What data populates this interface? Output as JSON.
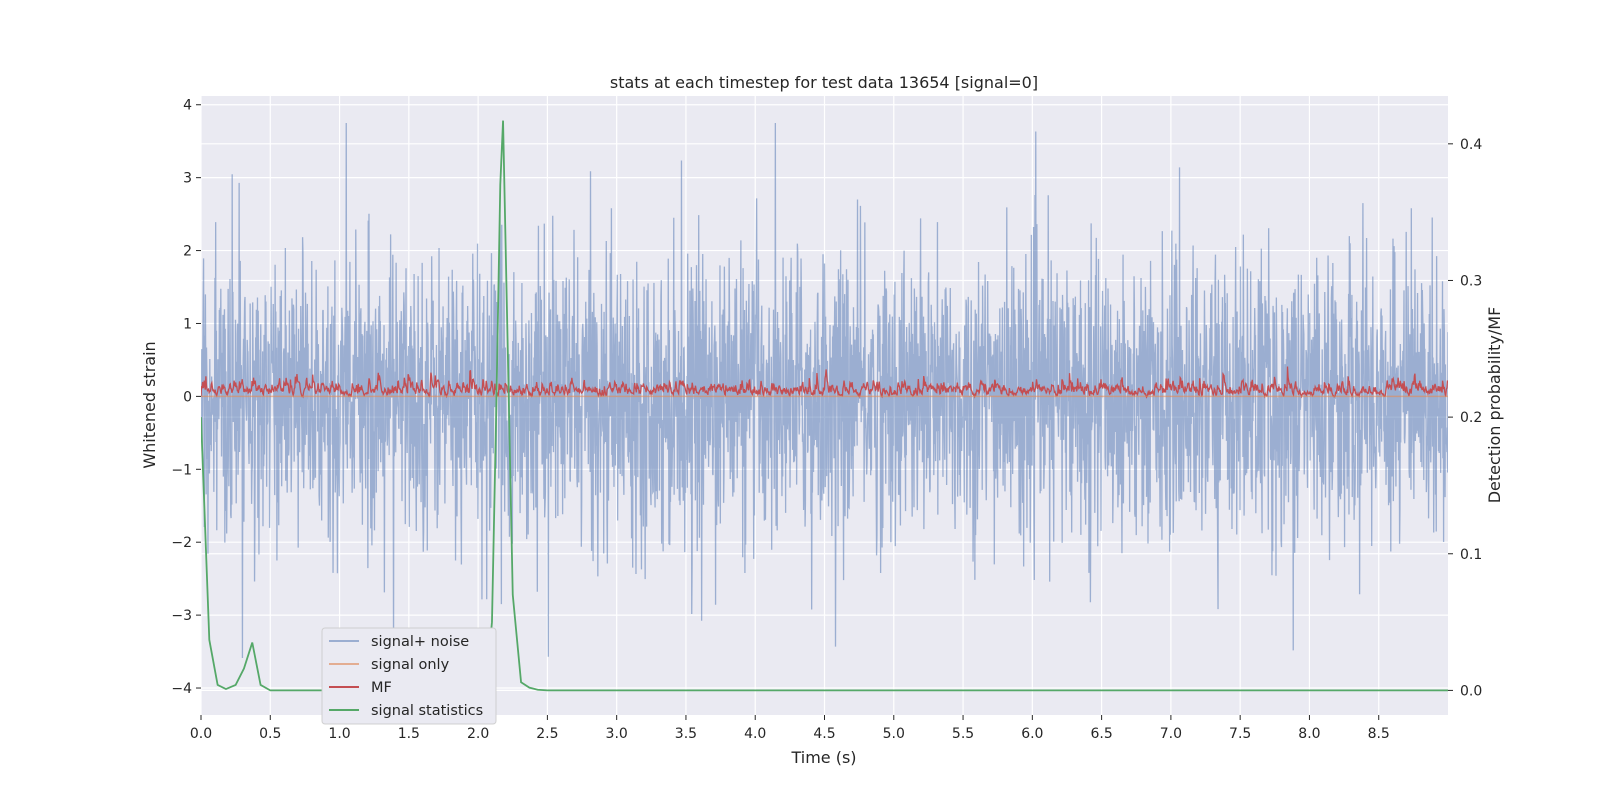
{
  "chart_data": {
    "type": "line",
    "title": "stats at each timestep for test data 13654 [signal=0]",
    "xlabel": "Time (s)",
    "ylabel": "Whitened strain",
    "y2label": "Detection probability/MF",
    "xlim": [
      0.0,
      9.0
    ],
    "ylim": [
      -4.37,
      4.12
    ],
    "y2lim": [
      -0.018,
      0.435
    ],
    "xticks": [
      "0.0",
      "0.5",
      "1.0",
      "1.5",
      "2.0",
      "2.5",
      "3.0",
      "3.5",
      "4.0",
      "4.5",
      "5.0",
      "5.5",
      "6.0",
      "6.5",
      "7.0",
      "7.5",
      "8.0",
      "8.5"
    ],
    "yticks": [
      "4",
      "3",
      "2",
      "1",
      "0",
      "−1",
      "−2",
      "−3",
      "−4"
    ],
    "y2ticks": [
      "0.4",
      "0.3",
      "0.2",
      "0.1",
      "0.0"
    ],
    "grid": true,
    "legend_position": "lower-left",
    "colors": {
      "background": "#eaeaf2",
      "grid": "#ffffff",
      "noise": "#4c72b0",
      "signal_only": "#dd8452",
      "mf": "#c44e52",
      "statistics": "#55a868"
    },
    "series": [
      {
        "name": "signal+ noise",
        "axis": "left",
        "note": "dense whitened noise, range about -4 to 3.8"
      },
      {
        "name": "signal only",
        "axis": "left",
        "values_constant": 0
      },
      {
        "name": "MF",
        "axis": "right",
        "note": "matched-filter output, approx 0.20 to 0.24"
      },
      {
        "name": "signal statistics",
        "axis": "right",
        "x": [
          0.0,
          0.06,
          0.12,
          0.18,
          0.25,
          0.31,
          0.37,
          0.43,
          0.5,
          0.62,
          0.75,
          0.87,
          1.0,
          1.25,
          1.5,
          1.75,
          1.9,
          2.0,
          2.06,
          2.1,
          2.13,
          2.16,
          2.18,
          2.22,
          2.25,
          2.31,
          2.37,
          2.43,
          2.5,
          3.0,
          4.0,
          5.0,
          6.0,
          7.0,
          8.0,
          9.0
        ],
        "values": [
          0.2,
          0.037,
          0.004,
          0.001,
          0.004,
          0.016,
          0.035,
          0.004,
          0.0,
          0.0,
          0.0,
          0.0,
          0.0,
          0.0,
          0.0,
          0.0,
          0.0,
          0.001,
          0.005,
          0.05,
          0.2,
          0.37,
          0.417,
          0.22,
          0.07,
          0.006,
          0.002,
          0.0005,
          0.0,
          0.0,
          0.0,
          0.0,
          0.0,
          0.0,
          0.0,
          0.0
        ]
      }
    ]
  }
}
